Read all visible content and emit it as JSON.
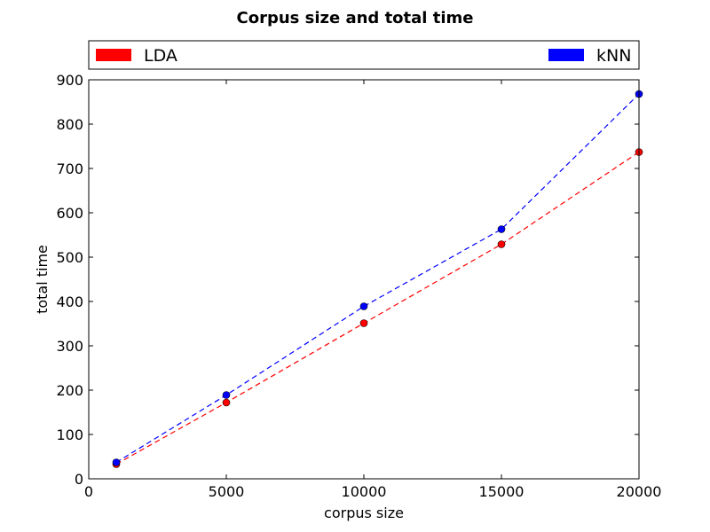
{
  "chart_data": {
    "type": "line",
    "title": "Corpus size and total time",
    "xlabel": "corpus size",
    "ylabel": "total time",
    "xlim": [
      0,
      20000
    ],
    "ylim": [
      0,
      900
    ],
    "xticks": [
      0,
      5000,
      10000,
      15000,
      20000
    ],
    "yticks": [
      0,
      100,
      200,
      300,
      400,
      500,
      600,
      700,
      800,
      900
    ],
    "x": [
      1000,
      5000,
      10000,
      15000,
      20000
    ],
    "grid": false,
    "legend_position": "top, outside plot area",
    "series": [
      {
        "name": "LDA",
        "color": "#ff0000",
        "line_style": "dashed",
        "marker": "circle",
        "values": [
          33,
          172,
          351,
          529,
          737
        ]
      },
      {
        "name": "kNN",
        "color": "#0000ff",
        "line_style": "dashed",
        "marker": "circle",
        "values": [
          37,
          189,
          389,
          563,
          868
        ]
      }
    ]
  }
}
